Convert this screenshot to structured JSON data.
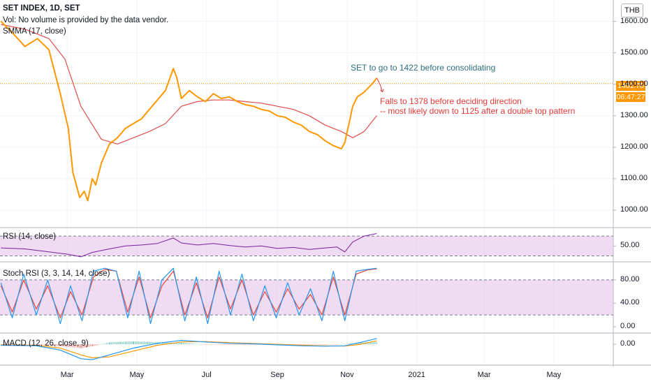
{
  "header": {
    "title": "SET INDEX, 1D, SET",
    "volume_note": "Vol: No volume is provided by the data vendor.",
    "ma_label": "SMMA (17, close)"
  },
  "currency": "THB",
  "price_tag": {
    "value": "1401.78",
    "countdown": "06:47:27"
  },
  "annotations": {
    "target": "SET to go to 1422 before consolidating",
    "fall_line1": "Falls to 1378 before deciding direction",
    "fall_line2": "-- most likely down to 1125 after a double top pattern"
  },
  "panes": {
    "rsi_label": "RSI (14, close)",
    "stoch_label": "Stoch RSI (3, 3, 14, 14, close)",
    "macd_label": "MACD (12, 26, close, 9)"
  },
  "colors": {
    "price": "#ff9800",
    "smma": "#e04c4c",
    "rsi": "#7b1fa2",
    "stoch_k": "#2196f3",
    "stoch_d": "#f44336",
    "macd": "#2196f3",
    "signal": "#ff9800",
    "band_fill": "#e1bee7",
    "annotation_target": "#2e6f7e",
    "annotation_fall": "#e53935",
    "price_tag": "#ff9800"
  },
  "chart_data": [
    {
      "type": "line",
      "title": "SET INDEX, 1D, SET",
      "x_ticks": [
        "Mar",
        "May",
        "Jul",
        "Sep",
        "Nov",
        "2021",
        "Mar",
        "May"
      ],
      "y_ticks": [
        "1600.00",
        "1500.00",
        "1400.00",
        "1300.00",
        "1200.00",
        "1100.00",
        "1000.00"
      ],
      "ylim": [
        960,
        1650
      ],
      "series": [
        {
          "name": "SET INDEX",
          "x": [
            "2020-01-03",
            "2020-01-14",
            "2020-01-24",
            "2020-02-04",
            "2020-02-14",
            "2020-02-24",
            "2020-03-02",
            "2020-03-06",
            "2020-03-12",
            "2020-03-16",
            "2020-03-19",
            "2020-03-23",
            "2020-03-26",
            "2020-03-31",
            "2020-04-07",
            "2020-04-14",
            "2020-04-21",
            "2020-04-28",
            "2020-05-05",
            "2020-05-12",
            "2020-05-19",
            "2020-05-26",
            "2020-06-02",
            "2020-06-05",
            "2020-06-09",
            "2020-06-16",
            "2020-06-23",
            "2020-06-30",
            "2020-07-07",
            "2020-07-14",
            "2020-07-21",
            "2020-07-28",
            "2020-08-04",
            "2020-08-11",
            "2020-08-18",
            "2020-08-25",
            "2020-09-01",
            "2020-09-08",
            "2020-09-15",
            "2020-09-22",
            "2020-09-29",
            "2020-10-06",
            "2020-10-13",
            "2020-10-20",
            "2020-10-27",
            "2020-10-30",
            "2020-11-03",
            "2020-11-06",
            "2020-11-10",
            "2020-11-16",
            "2020-11-20",
            "2020-11-24",
            "2020-11-27"
          ],
          "values": [
            1600,
            1560,
            1520,
            1545,
            1510,
            1370,
            1260,
            1120,
            1040,
            1060,
            1030,
            1100,
            1080,
            1150,
            1210,
            1230,
            1260,
            1275,
            1290,
            1320,
            1350,
            1380,
            1450,
            1420,
            1355,
            1380,
            1360,
            1345,
            1370,
            1355,
            1360,
            1345,
            1335,
            1330,
            1320,
            1315,
            1300,
            1295,
            1280,
            1270,
            1250,
            1240,
            1220,
            1205,
            1195,
            1215,
            1280,
            1330,
            1360,
            1375,
            1390,
            1405,
            1420
          ]
        },
        {
          "name": "SMMA (17, close)",
          "x": [
            "2020-01-03",
            "2020-01-24",
            "2020-02-14",
            "2020-02-28",
            "2020-03-13",
            "2020-03-31",
            "2020-04-14",
            "2020-04-28",
            "2020-05-12",
            "2020-05-26",
            "2020-06-09",
            "2020-06-23",
            "2020-07-07",
            "2020-07-21",
            "2020-08-04",
            "2020-08-18",
            "2020-09-01",
            "2020-09-15",
            "2020-09-29",
            "2020-10-13",
            "2020-10-27",
            "2020-11-06",
            "2020-11-16",
            "2020-11-27"
          ],
          "values": [
            1590,
            1575,
            1545,
            1480,
            1330,
            1225,
            1210,
            1230,
            1250,
            1275,
            1330,
            1345,
            1350,
            1350,
            1345,
            1340,
            1330,
            1320,
            1300,
            1270,
            1250,
            1230,
            1250,
            1300
          ]
        }
      ],
      "annotations": [
        "SET to go to 1422 before consolidating",
        "Falls to 1378 before deciding direction",
        "-- most likely down to 1125 after a double top pattern"
      ]
    },
    {
      "type": "line",
      "title": "RSI (14, close)",
      "y_ticks": [
        "50.00"
      ],
      "ylim": [
        25,
        80
      ],
      "bands": [
        30,
        70
      ],
      "series": [
        {
          "name": "RSI (14, close)",
          "x": [
            "2020-01-03",
            "2020-01-24",
            "2020-02-14",
            "2020-03-02",
            "2020-03-13",
            "2020-03-23",
            "2020-04-07",
            "2020-04-21",
            "2020-05-05",
            "2020-05-19",
            "2020-06-02",
            "2020-06-09",
            "2020-06-23",
            "2020-07-07",
            "2020-07-21",
            "2020-08-04",
            "2020-08-18",
            "2020-09-01",
            "2020-09-15",
            "2020-09-29",
            "2020-10-13",
            "2020-10-23",
            "2020-10-30",
            "2020-11-06",
            "2020-11-16",
            "2020-11-27"
          ],
          "values": [
            46,
            44,
            38,
            33,
            28,
            37,
            44,
            50,
            52,
            55,
            66,
            56,
            52,
            55,
            51,
            48,
            50,
            45,
            47,
            43,
            46,
            48,
            38,
            58,
            70,
            75
          ]
        }
      ]
    },
    {
      "type": "line",
      "title": "Stoch RSI (3, 3, 14, 14, close)",
      "y_ticks": [
        "80.00",
        "40.00",
        "0.00"
      ],
      "ylim": [
        -5,
        105
      ],
      "bands": [
        20,
        80
      ],
      "series": [
        {
          "name": "K",
          "x": [
            "2020-01-03",
            "2020-01-13",
            "2020-01-23",
            "2020-02-03",
            "2020-02-13",
            "2020-02-24",
            "2020-03-04",
            "2020-03-14",
            "2020-03-24",
            "2020-04-03",
            "2020-04-13",
            "2020-04-23",
            "2020-05-03",
            "2020-05-13",
            "2020-05-23",
            "2020-06-02",
            "2020-06-12",
            "2020-06-22",
            "2020-07-02",
            "2020-07-12",
            "2020-07-22",
            "2020-08-01",
            "2020-08-11",
            "2020-08-21",
            "2020-08-31",
            "2020-09-10",
            "2020-09-20",
            "2020-09-30",
            "2020-10-10",
            "2020-10-20",
            "2020-10-30",
            "2020-11-09",
            "2020-11-19",
            "2020-11-27"
          ],
          "values": [
            75,
            15,
            90,
            20,
            80,
            5,
            70,
            10,
            95,
            100,
            95,
            15,
            95,
            5,
            80,
            100,
            10,
            85,
            5,
            95,
            20,
            90,
            10,
            70,
            15,
            75,
            20,
            65,
            10,
            95,
            10,
            95,
            98,
            100
          ]
        },
        {
          "name": "D",
          "x": [
            "2020-01-03",
            "2020-01-13",
            "2020-01-23",
            "2020-02-03",
            "2020-02-13",
            "2020-02-24",
            "2020-03-04",
            "2020-03-14",
            "2020-03-24",
            "2020-04-03",
            "2020-04-13",
            "2020-04-23",
            "2020-05-03",
            "2020-05-13",
            "2020-05-23",
            "2020-06-02",
            "2020-06-12",
            "2020-06-22",
            "2020-07-02",
            "2020-07-12",
            "2020-07-22",
            "2020-08-01",
            "2020-08-11",
            "2020-08-21",
            "2020-08-31",
            "2020-09-10",
            "2020-09-20",
            "2020-09-30",
            "2020-10-10",
            "2020-10-20",
            "2020-10-30",
            "2020-11-09",
            "2020-11-19",
            "2020-11-27"
          ],
          "values": [
            70,
            25,
            80,
            30,
            70,
            15,
            60,
            20,
            85,
            98,
            95,
            25,
            85,
            15,
            70,
            95,
            20,
            75,
            15,
            85,
            30,
            80,
            20,
            60,
            25,
            65,
            30,
            55,
            20,
            85,
            20,
            90,
            97,
            99
          ]
        }
      ]
    },
    {
      "type": "line",
      "title": "MACD (12, 26, close, 9)",
      "y_ticks": [
        "0.00"
      ],
      "ylim": [
        -90,
        40
      ],
      "series": [
        {
          "name": "MACD",
          "x": [
            "2020-01-03",
            "2020-02-03",
            "2020-02-24",
            "2020-03-13",
            "2020-03-23",
            "2020-04-07",
            "2020-04-28",
            "2020-05-19",
            "2020-06-09",
            "2020-06-30",
            "2020-07-21",
            "2020-08-11",
            "2020-09-01",
            "2020-09-22",
            "2020-10-13",
            "2020-10-30",
            "2020-11-13",
            "2020-11-27"
          ],
          "values": [
            -5,
            -8,
            -30,
            -75,
            -80,
            -55,
            -20,
            5,
            20,
            12,
            5,
            2,
            -3,
            -8,
            -10,
            -8,
            10,
            30
          ]
        },
        {
          "name": "Signal",
          "x": [
            "2020-01-03",
            "2020-02-03",
            "2020-02-24",
            "2020-03-13",
            "2020-03-23",
            "2020-04-07",
            "2020-04-28",
            "2020-05-19",
            "2020-06-09",
            "2020-06-30",
            "2020-07-21",
            "2020-08-11",
            "2020-09-01",
            "2020-09-22",
            "2020-10-13",
            "2020-10-30",
            "2020-11-13",
            "2020-11-27"
          ],
          "values": [
            -3,
            -6,
            -20,
            -55,
            -70,
            -65,
            -35,
            -5,
            12,
            14,
            8,
            4,
            0,
            -5,
            -8,
            -9,
            0,
            18
          ]
        }
      ]
    }
  ]
}
